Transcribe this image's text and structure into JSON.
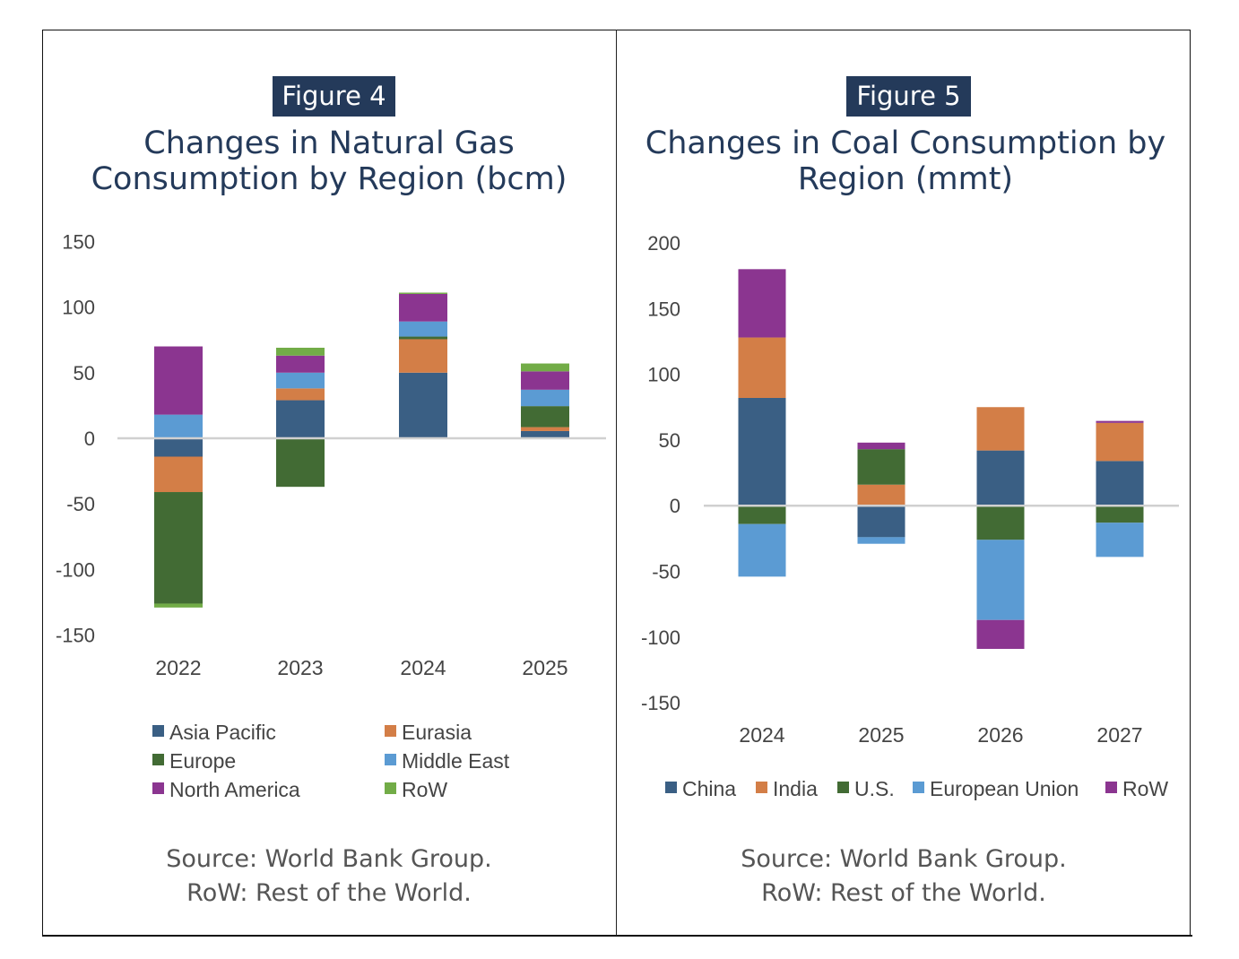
{
  "figures": [
    {
      "badge": "Figure 4",
      "title_line1": "Changes in Natural Gas",
      "title_line2": "Consumption by Region (bcm)",
      "source_line1": "Source: World Bank Group.",
      "source_line2": "RoW: Rest of the World."
    },
    {
      "badge": "Figure 5",
      "title_line1": "Changes in Coal Consumption by",
      "title_line2": "Region (mmt)",
      "source_line1": "Source: World Bank Group.",
      "source_line2": "RoW: Rest of the World."
    }
  ],
  "chart_data": [
    {
      "type": "bar",
      "stacked": true,
      "title": "Changes in Natural Gas Consumption by Region (bcm)",
      "xlabel": "",
      "ylabel": "",
      "categories": [
        "2022",
        "2023",
        "2024",
        "2025"
      ],
      "ylim": [
        -150,
        150
      ],
      "yticks": [
        150,
        100,
        50,
        0,
        -50,
        -100,
        -150
      ],
      "grid": false,
      "legend_position": "bottom",
      "series": [
        {
          "name": "Asia Pacific",
          "color": "#3a5f84",
          "values": [
            -14,
            29,
            50,
            5.5
          ]
        },
        {
          "name": "Eurasia",
          "color": "#d37e47",
          "values": [
            -27,
            9,
            25.5,
            3
          ]
        },
        {
          "name": "Europe",
          "color": "#426b34",
          "values": [
            -85,
            -37,
            2,
            16
          ]
        },
        {
          "name": "Middle East",
          "color": "#5b9bd3",
          "values": [
            18,
            12,
            11.5,
            12.5
          ]
        },
        {
          "name": "North America",
          "color": "#8b3590",
          "values": [
            52,
            13,
            21,
            14
          ]
        },
        {
          "name": "RoW",
          "color": "#72ac47",
          "values": [
            -3,
            6,
            1,
            6
          ]
        }
      ]
    },
    {
      "type": "bar",
      "stacked": true,
      "title": "Changes in Coal Consumption by Region (mmt)",
      "xlabel": "",
      "ylabel": "",
      "categories": [
        "2024",
        "2025",
        "2026",
        "2027"
      ],
      "ylim": [
        -150,
        200
      ],
      "yticks": [
        200,
        150,
        100,
        50,
        0,
        -50,
        -100,
        -150
      ],
      "grid": false,
      "legend_position": "bottom",
      "series": [
        {
          "name": "China",
          "color": "#3a5f84",
          "values": [
            82,
            -24,
            42,
            34
          ]
        },
        {
          "name": "India",
          "color": "#d37e47",
          "values": [
            46,
            16,
            33,
            29
          ]
        },
        {
          "name": "U.S.",
          "color": "#426b34",
          "values": [
            -14,
            27,
            -26,
            -13
          ]
        },
        {
          "name": "European Union",
          "color": "#5b9bd3",
          "values": [
            -40,
            -5,
            -61,
            -26
          ]
        },
        {
          "name": "RoW",
          "color": "#8b3590",
          "values": [
            52,
            5,
            -22,
            1.5
          ]
        }
      ]
    }
  ]
}
